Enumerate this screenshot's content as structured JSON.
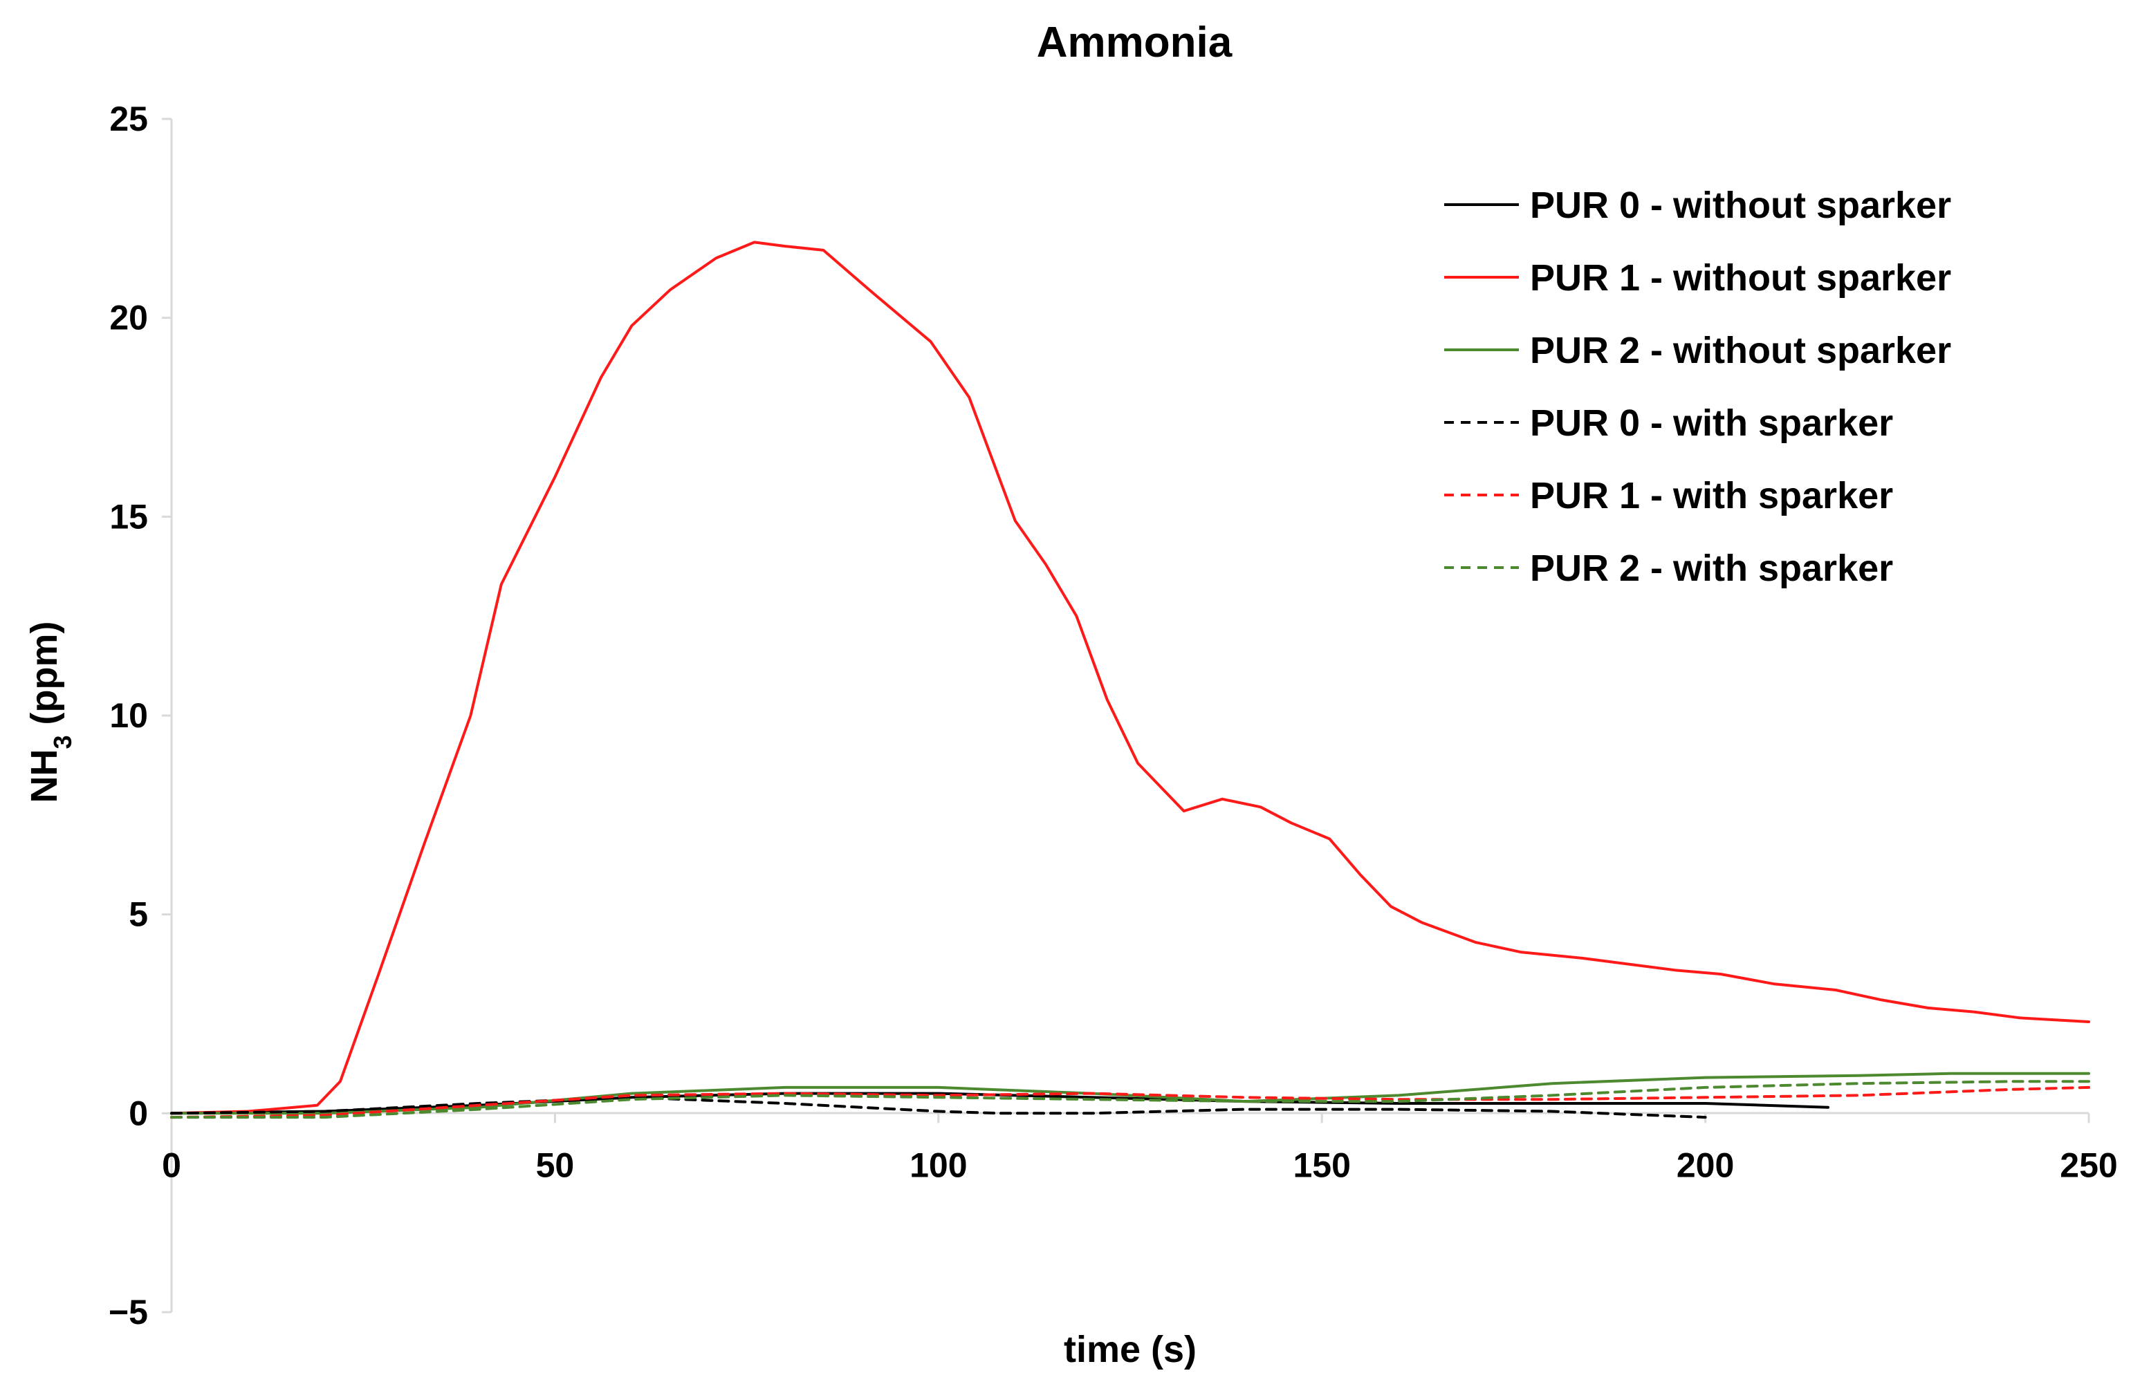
{
  "chart_data": {
    "type": "line",
    "title": "Ammonia",
    "xlabel": "time (s)",
    "ylabel_main": "NH",
    "ylabel_sub": "3",
    "ylabel_unit": " (ppm)",
    "xlim": [
      0,
      250
    ],
    "ylim": [
      -5,
      25
    ],
    "xticks": [
      0,
      50,
      100,
      150,
      200,
      250
    ],
    "xtick_labels": [
      "0",
      "50",
      "100",
      "150",
      "200",
      "250"
    ],
    "yticks": [
      25,
      20,
      15,
      10,
      5,
      0,
      -5
    ],
    "ytick_labels": [
      "25",
      "20",
      "15",
      "10",
      "5",
      "0",
      "−5"
    ],
    "grid": false,
    "legend_position": "top-right",
    "series": [
      {
        "name": "PUR 0 - without sparker",
        "color": "#000000",
        "dash": "solid",
        "x": [
          0,
          20,
          40,
          60,
          80,
          100,
          120,
          140,
          160,
          180,
          200,
          216
        ],
        "y": [
          0,
          0.05,
          0.2,
          0.4,
          0.5,
          0.5,
          0.4,
          0.3,
          0.25,
          0.25,
          0.25,
          0.15
        ]
      },
      {
        "name": "PUR 1 - without sparker",
        "color": "#ff1a1a",
        "dash": "solid",
        "x": [
          0,
          10,
          19,
          22,
          27,
          33,
          39,
          43,
          50,
          56,
          60,
          65,
          71,
          76,
          80,
          85,
          91,
          99,
          104,
          110,
          114,
          118,
          122,
          126,
          132,
          137,
          142,
          146,
          151,
          155,
          159,
          163,
          170,
          176,
          184,
          190,
          196,
          202,
          209,
          217,
          223,
          229,
          235,
          241,
          250
        ],
        "y": [
          0,
          0.05,
          0.2,
          0.8,
          3.5,
          6.8,
          10,
          13.3,
          16,
          18.5,
          19.8,
          20.7,
          21.5,
          21.9,
          21.8,
          21.7,
          20.7,
          19.4,
          18,
          14.9,
          13.8,
          12.5,
          10.4,
          8.8,
          7.6,
          7.9,
          7.7,
          7.3,
          6.9,
          6,
          5.2,
          4.8,
          4.3,
          4.05,
          3.9,
          3.75,
          3.6,
          3.5,
          3.25,
          3.1,
          2.85,
          2.65,
          2.55,
          2.4,
          2.3
        ]
      },
      {
        "name": "PUR 2 - without sparker",
        "color": "#4d8a2f",
        "dash": "solid",
        "x": [
          0,
          20,
          40,
          60,
          80,
          100,
          120,
          140,
          160,
          180,
          200,
          220,
          232,
          250
        ],
        "y": [
          0,
          0,
          0.15,
          0.5,
          0.65,
          0.65,
          0.5,
          0.3,
          0.45,
          0.75,
          0.9,
          0.95,
          1.0,
          1.0
        ]
      },
      {
        "name": "PUR 0 - with sparker",
        "color": "#000000",
        "dash": "dashed",
        "x": [
          0,
          20,
          40,
          60,
          80,
          100,
          108,
          120,
          140,
          160,
          180,
          200
        ],
        "y": [
          0,
          0.05,
          0.25,
          0.4,
          0.25,
          0.05,
          0,
          0,
          0.1,
          0.1,
          0.05,
          -0.1
        ]
      },
      {
        "name": "PUR 1 - with sparker",
        "color": "#ff1a1a",
        "dash": "dashed",
        "x": [
          0,
          20,
          40,
          60,
          80,
          100,
          120,
          140,
          160,
          180,
          200,
          220,
          240,
          250
        ],
        "y": [
          -0.1,
          -0.05,
          0.2,
          0.45,
          0.5,
          0.45,
          0.5,
          0.4,
          0.35,
          0.35,
          0.4,
          0.45,
          0.6,
          0.65
        ]
      },
      {
        "name": "PUR 2 - with sparker",
        "color": "#4d8a2f",
        "dash": "dashed",
        "x": [
          0,
          20,
          40,
          60,
          80,
          100,
          120,
          140,
          160,
          180,
          200,
          220,
          240,
          250
        ],
        "y": [
          -0.1,
          -0.1,
          0.1,
          0.35,
          0.45,
          0.4,
          0.35,
          0.3,
          0.3,
          0.45,
          0.65,
          0.75,
          0.8,
          0.8
        ]
      }
    ]
  }
}
